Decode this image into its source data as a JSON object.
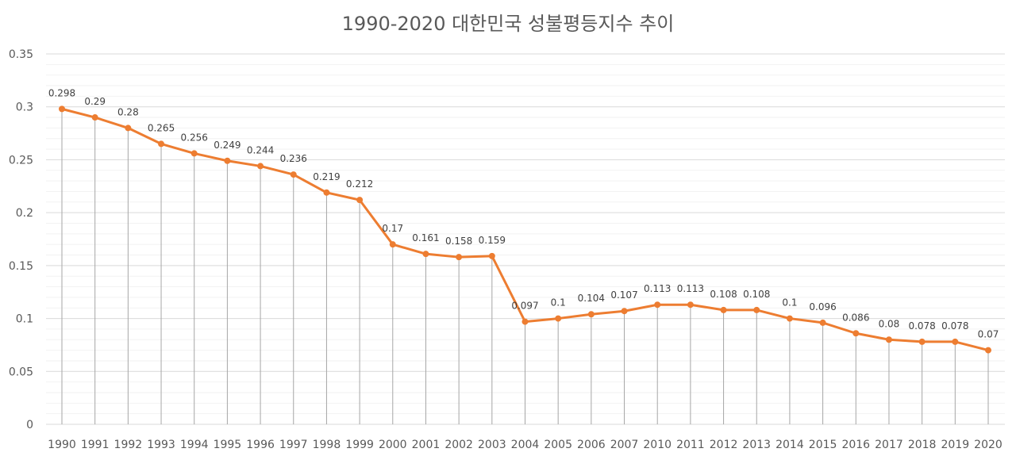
{
  "chart_data": {
    "type": "line",
    "title": "1990-2020 대한민국 성불평등지수 추이",
    "xlabel": "",
    "ylabel": "",
    "ylim": [
      0,
      0.35
    ],
    "yticks": [
      "0",
      "0.05",
      "0.1",
      "0.15",
      "0.2",
      "0.25",
      "0.3",
      "0.35"
    ],
    "grid": true,
    "legend": "none",
    "drop_lines": true,
    "categories": [
      "1990",
      "1991",
      "1992",
      "1993",
      "1994",
      "1995",
      "1996",
      "1997",
      "1998",
      "1999",
      "2000",
      "2001",
      "2002",
      "2003",
      "2004",
      "2005",
      "2006",
      "2007",
      "2010",
      "2011",
      "2012",
      "2013",
      "2014",
      "2015",
      "2016",
      "2017",
      "2018",
      "2019",
      "2020"
    ],
    "series": [
      {
        "values": [
          0.298,
          0.29,
          0.28,
          0.265,
          0.256,
          0.249,
          0.244,
          0.236,
          0.219,
          0.212,
          0.17,
          0.161,
          0.158,
          0.159,
          0.097,
          0.1,
          0.104,
          0.107,
          0.113,
          0.113,
          0.108,
          0.108,
          0.1,
          0.096,
          0.086,
          0.08,
          0.078,
          0.078,
          0.07
        ],
        "labels": [
          "0.298",
          "0.29",
          "0.28",
          "0.265",
          "0.256",
          "0.249",
          "0.244",
          "0.236",
          "0.219",
          "0.212",
          "0.17",
          "0.161",
          "0.158",
          "0.159",
          "0.097",
          "0.1",
          "0.104",
          "0.107",
          "0.113",
          "0.113",
          "0.108",
          "0.108",
          "0.1",
          "0.096",
          "0.086",
          "0.08",
          "0.078",
          "0.078",
          "0.07"
        ]
      }
    ],
    "colors": {
      "line": "#ED7D31",
      "drop_line": "#A6A6A6",
      "grid_major": "#D9D9D9",
      "grid_minor": "#F2F2F2",
      "text": "#595959"
    }
  }
}
